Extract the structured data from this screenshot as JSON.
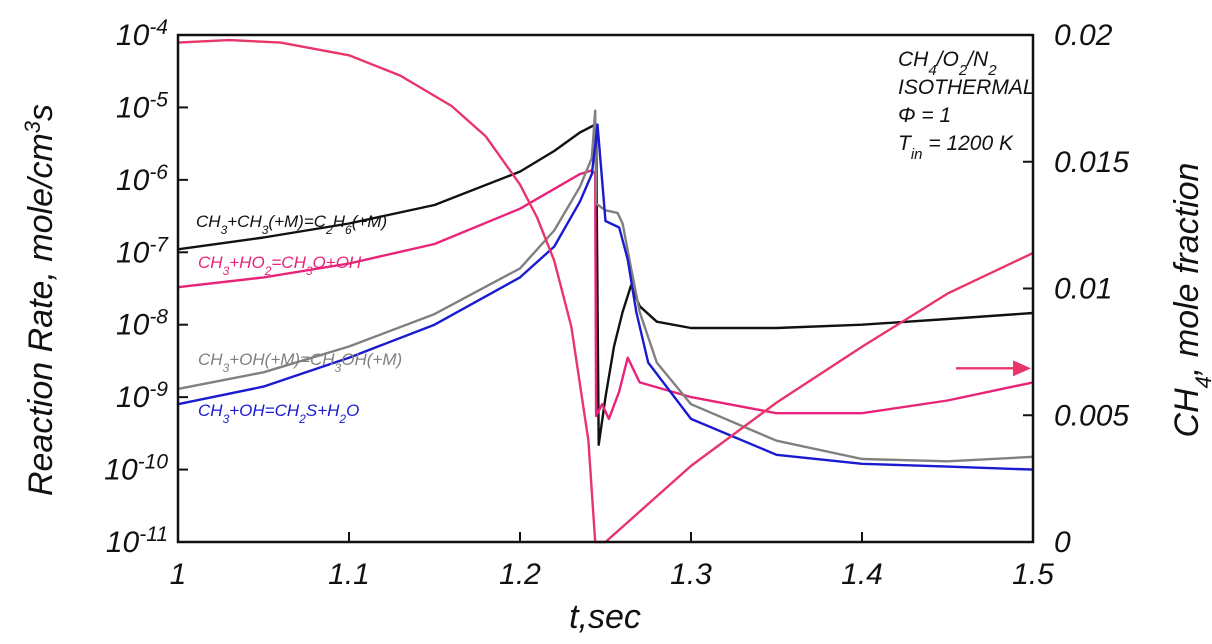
{
  "chart_data": {
    "type": "line",
    "xlabel": "t,sec",
    "ylabel_left": "Reaction Rate, mole/cm³s",
    "ylabel_right": "CH₄, mole fraction",
    "xlim": [
      1.0,
      1.5
    ],
    "ylim_left": [
      1e-11,
      0.0001
    ],
    "yscale_left": "log",
    "ylim_right": [
      0,
      0.02
    ],
    "x_ticks": [
      "1",
      "1.1",
      "1.2",
      "1.3",
      "1.4",
      "1.5"
    ],
    "y_ticks_left": [
      {
        "base": "10",
        "exp": "-4"
      },
      {
        "base": "10",
        "exp": "-5"
      },
      {
        "base": "10",
        "exp": "-6"
      },
      {
        "base": "10",
        "exp": "-7"
      },
      {
        "base": "10",
        "exp": "-8"
      },
      {
        "base": "10",
        "exp": "-9"
      },
      {
        "base": "10",
        "exp": "-10"
      },
      {
        "base": "10",
        "exp": "-11"
      }
    ],
    "y_ticks_right": [
      "0.02",
      "0.015",
      "0.01",
      "0.005",
      "0"
    ],
    "annotation": {
      "line1": "CH4/O2/N2",
      "line2": "ISOTHERMAL",
      "line3": "Φ =  1",
      "line4": "Tin = 1200 K"
    },
    "colors": {
      "black": "#111111",
      "magenta": "#e8247a",
      "gray": "#808080",
      "blue": "#1a1ad0",
      "ch4": "#e8356a"
    },
    "series": [
      {
        "name": "CH3+CH3(+M)=C2H6(+M)",
        "axis": "left",
        "color_key": "black",
        "x": [
          1.0,
          1.05,
          1.1,
          1.15,
          1.2,
          1.22,
          1.235,
          1.244,
          1.2445,
          1.246,
          1.25,
          1.255,
          1.26,
          1.265,
          1.27,
          1.28,
          1.3,
          1.35,
          1.4,
          1.45,
          1.5
        ],
        "y": [
          1.1e-07,
          1.6e-07,
          2.5e-07,
          4.5e-07,
          1.3e-06,
          2.5e-06,
          4.5e-06,
          5.8e-06,
          5.8e-06,
          2.2e-10,
          1e-09,
          5e-09,
          1.5e-08,
          3.5e-08,
          1.8e-08,
          1.1e-08,
          9e-09,
          9e-09,
          1e-08,
          1.2e-08,
          1.45e-08
        ]
      },
      {
        "name": "CH3+HO2=CH3O+OH",
        "axis": "left",
        "color_key": "magenta",
        "x": [
          1.0,
          1.05,
          1.1,
          1.15,
          1.2,
          1.22,
          1.235,
          1.242,
          1.244,
          1.2445,
          1.248,
          1.252,
          1.258,
          1.263,
          1.27,
          1.3,
          1.35,
          1.4,
          1.45,
          1.5
        ],
        "y": [
          3.3e-08,
          4.5e-08,
          7e-08,
          1.3e-07,
          4e-07,
          7.5e-07,
          1.2e-06,
          1.35e-06,
          1.2e-06,
          5.5e-10,
          8e-10,
          5e-10,
          1.2e-09,
          3.5e-09,
          1.6e-09,
          1e-09,
          6e-10,
          6e-10,
          9e-10,
          1.6e-09
        ]
      },
      {
        "name": "CH3+OH(+M)=CH3OH(+M)",
        "axis": "left",
        "color_key": "gray",
        "x": [
          1.0,
          1.05,
          1.1,
          1.15,
          1.2,
          1.22,
          1.235,
          1.242,
          1.244,
          1.2445,
          1.25,
          1.257,
          1.26,
          1.265,
          1.27,
          1.28,
          1.3,
          1.35,
          1.4,
          1.45,
          1.5
        ],
        "y": [
          1.3e-09,
          2.2e-09,
          5e-09,
          1.4e-08,
          6e-08,
          2e-07,
          8e-07,
          2e-06,
          9e-06,
          4.7e-07,
          3.8e-07,
          3.5e-07,
          2.5e-07,
          6e-08,
          1.5e-08,
          3e-09,
          8e-10,
          2.5e-10,
          1.4e-10,
          1.3e-10,
          1.5e-10
        ]
      },
      {
        "name": "CH3+OH=CH2S+H2O",
        "axis": "left",
        "color_key": "blue",
        "x": [
          1.0,
          1.05,
          1.1,
          1.15,
          1.2,
          1.22,
          1.235,
          1.242,
          1.244,
          1.2453,
          1.25,
          1.258,
          1.263,
          1.268,
          1.275,
          1.3,
          1.35,
          1.4,
          1.45,
          1.5
        ],
        "y": [
          8e-10,
          1.4e-09,
          3.5e-09,
          1e-08,
          4.5e-08,
          1.2e-07,
          5e-07,
          1.2e-06,
          3e-06,
          5.8e-06,
          2.7e-07,
          2.2e-07,
          8e-08,
          1.5e-08,
          3e-09,
          5e-10,
          1.6e-10,
          1.2e-10,
          1.1e-10,
          1e-10
        ]
      },
      {
        "name": "CH4",
        "axis": "right",
        "color_key": "ch4",
        "x": [
          1.0,
          1.03,
          1.06,
          1.1,
          1.13,
          1.16,
          1.18,
          1.2,
          1.21,
          1.22,
          1.23,
          1.24,
          1.244,
          1.25,
          1.3,
          1.35,
          1.4,
          1.45,
          1.5
        ],
        "y": [
          0.0197,
          0.0198,
          0.0197,
          0.0192,
          0.0184,
          0.0172,
          0.016,
          0.0141,
          0.0128,
          0.0111,
          0.0085,
          0.004,
          0.0,
          0.0,
          0.003,
          0.0055,
          0.0077,
          0.0098,
          0.0114
        ]
      }
    ],
    "series_labels": [
      {
        "parts": [
          {
            "t": "CH"
          },
          {
            "t": "3",
            "sub": true
          },
          {
            "t": "+CH"
          },
          {
            "t": "3",
            "sub": true
          },
          {
            "t": "(+M)=C"
          },
          {
            "t": "2",
            "sub": true
          },
          {
            "t": "H"
          },
          {
            "t": "6",
            "sub": true
          },
          {
            "t": "(+M)"
          }
        ]
      },
      {
        "parts": [
          {
            "t": "CH"
          },
          {
            "t": "3",
            "sub": true
          },
          {
            "t": "+HO"
          },
          {
            "t": "2",
            "sub": true
          },
          {
            "t": "=CH"
          },
          {
            "t": "3",
            "sub": true
          },
          {
            "t": "O+OH"
          }
        ]
      },
      {
        "parts": [
          {
            "t": "CH"
          },
          {
            "t": "3",
            "sub": true
          },
          {
            "t": "+OH(+M)=CH"
          },
          {
            "t": "3",
            "sub": true
          },
          {
            "t": "OH(+M)"
          }
        ]
      },
      {
        "parts": [
          {
            "t": "CH"
          },
          {
            "t": "3",
            "sub": true
          },
          {
            "t": "+OH=CH"
          },
          {
            "t": "2",
            "sub": true
          },
          {
            "t": "S+H"
          },
          {
            "t": "2",
            "sub": true
          },
          {
            "t": "O"
          }
        ]
      }
    ],
    "arrow": {
      "from_x": 1.455,
      "to_x": 1.5,
      "y_left": 2.5e-09,
      "direction": "right",
      "color_key": "ch4"
    }
  }
}
